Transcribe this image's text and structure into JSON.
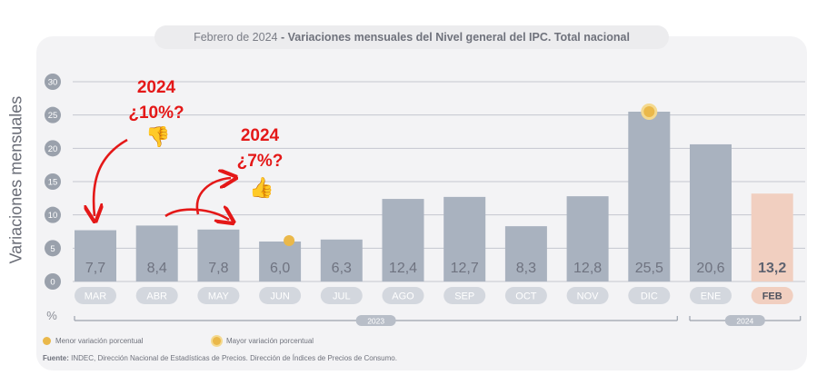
{
  "header": {
    "title_prefix": "Febrero de 2024",
    "title_main": "- Variaciones mensuales del Nivel general del IPC. Total nacional"
  },
  "chart_data": {
    "type": "bar",
    "categories": [
      "MAR",
      "ABR",
      "MAY",
      "JUN",
      "JUL",
      "AGO",
      "SEP",
      "OCT",
      "NOV",
      "DIC",
      "ENE",
      "FEB"
    ],
    "values": [
      7.7,
      8.4,
      7.8,
      6.0,
      6.3,
      12.4,
      12.7,
      8.3,
      12.8,
      25.5,
      20.6,
      13.2
    ],
    "value_labels": [
      "7,7",
      "8,4",
      "7,8",
      "6,0",
      "6,3",
      "12,4",
      "12,7",
      "8,3",
      "12,8",
      "25,5",
      "20,6",
      "13,2"
    ],
    "ylabel": "Variaciones mensuales",
    "unit_label": "%",
    "ylim": [
      0,
      30
    ],
    "yticks": [
      0,
      5,
      10,
      15,
      20,
      25,
      30
    ],
    "grid": true,
    "year_groups": [
      {
        "label": "2023",
        "from": "MAR",
        "to": "DIC"
      },
      {
        "label": "2024",
        "from": "ENE",
        "to": "FEB"
      }
    ],
    "highlight": {
      "category": "FEB",
      "color": "#f1cfc0"
    },
    "bar_color": "#a9b2bf",
    "min_marker": {
      "category": "JUN",
      "color": "#eab84a"
    },
    "max_marker": {
      "category": "DIC",
      "color": "#eab84a"
    }
  },
  "legend": {
    "min_label": "Menor variación porcentual",
    "max_label": "Mayor variación porcentual"
  },
  "source": {
    "label": "Fuente:",
    "text": "INDEC, Dirección Nacional de Estadísticas de Precios. Dirección de Índices de Precios de Consumo."
  },
  "annotations": {
    "note1_year": "2024",
    "note1_value": "¿10%?",
    "note2_year": "2024",
    "note2_value": "¿7%?",
    "thumb_down": "👎",
    "thumb_up": "👍",
    "color": "#e41818"
  }
}
